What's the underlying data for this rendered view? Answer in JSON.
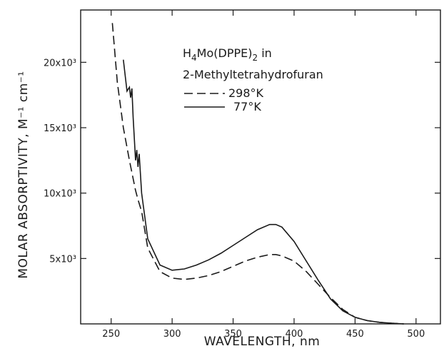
{
  "chart_data": {
    "type": "line",
    "title": "",
    "xlabel": "WAVELENGTH, nm",
    "ylabel": "MOLAR ABSORPTIVITY, M⁻¹ cm⁻¹",
    "xlim": [
      225,
      520
    ],
    "ylim": [
      0,
      24000
    ],
    "x_ticks": [
      250,
      300,
      350,
      400,
      450,
      500
    ],
    "x_tick_labels": [
      "250",
      "300",
      "350",
      "400",
      "450",
      "500"
    ],
    "y_ticks": [
      5000,
      10000,
      15000,
      20000
    ],
    "y_tick_labels": [
      "5x10³",
      "10x10³",
      "15x10³",
      "20x10³"
    ],
    "grid": false,
    "legend_placement": "top-right",
    "legend": {
      "compound_prefix": "H",
      "compound_sub1": "4",
      "compound_mid": "Mo(DPPE)",
      "compound_sub2": "2",
      "compound_suffix": " in",
      "solvent": "2-Methyltetrahydrofuran"
    },
    "series": [
      {
        "name": "298°K",
        "style": "dashed",
        "x": [
          251,
          255,
          260,
          265,
          270,
          272,
          275,
          280,
          290,
          300,
          310,
          320,
          330,
          340,
          350,
          360,
          370,
          380,
          385,
          390,
          400,
          410,
          420,
          430,
          440,
          450,
          460,
          470,
          480,
          490
        ],
        "y": [
          23000,
          18500,
          15000,
          12500,
          10200,
          9500,
          8600,
          5800,
          4000,
          3500,
          3400,
          3500,
          3700,
          4000,
          4400,
          4800,
          5100,
          5300,
          5300,
          5200,
          4800,
          4000,
          3000,
          2000,
          1100,
          500,
          250,
          120,
          50,
          0
        ]
      },
      {
        "name": "77°K",
        "style": "solid",
        "x": [
          260,
          263,
          265,
          266,
          267,
          268,
          270,
          271,
          272,
          273,
          275,
          280,
          290,
          300,
          310,
          320,
          330,
          340,
          350,
          360,
          370,
          380,
          385,
          390,
          400,
          410,
          420,
          430,
          440,
          450,
          460,
          470,
          480,
          490
        ],
        "y": [
          20200,
          17800,
          18100,
          17300,
          18000,
          15800,
          12500,
          13300,
          12000,
          13000,
          10000,
          6500,
          4500,
          4100,
          4200,
          4500,
          4900,
          5400,
          6000,
          6600,
          7200,
          7600,
          7600,
          7400,
          6300,
          4800,
          3300,
          1900,
          1000,
          500,
          250,
          120,
          50,
          0
        ]
      }
    ]
  }
}
